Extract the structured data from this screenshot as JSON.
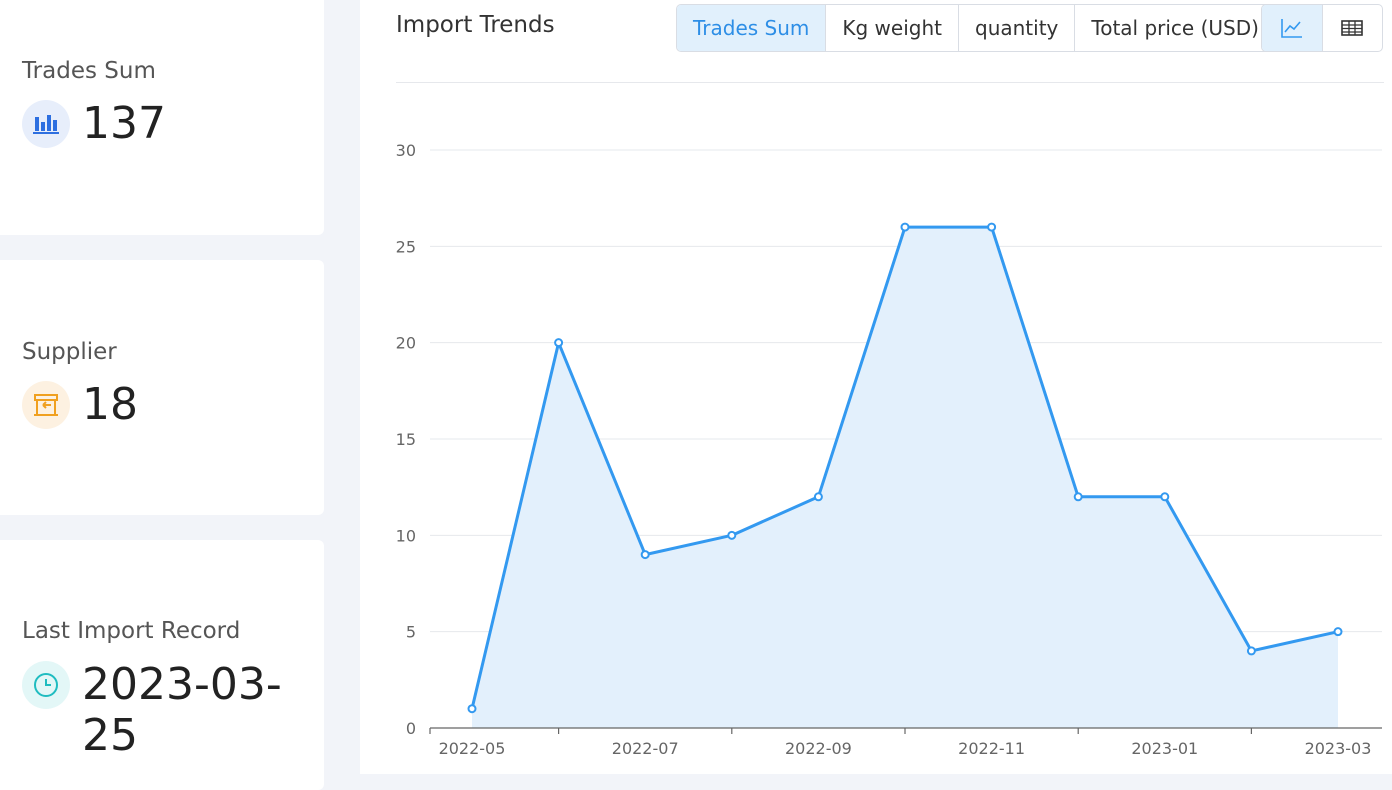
{
  "stats": {
    "trades": {
      "label": "Trades Sum",
      "value": "137",
      "icon": "bar-chart-icon",
      "color": "#2d6fe0"
    },
    "supplier": {
      "label": "Supplier",
      "value": "18",
      "icon": "storefront-icon",
      "color": "#f0a020"
    },
    "last_import": {
      "label": "Last Import Record",
      "value": "2023-03-25",
      "icon": "clock-icon",
      "color": "#1fbcc0"
    }
  },
  "chart": {
    "title": "Import Trends",
    "tabs": [
      "Trades Sum",
      "Kg weight",
      "quantity",
      "Total price (USD)"
    ],
    "active_tab": "Trades Sum",
    "view_buttons": {
      "line": "line-chart-icon",
      "table": "table-icon"
    },
    "active_view": "line",
    "accent_color": "#3399f0"
  },
  "chart_data": {
    "type": "area",
    "title": "",
    "xlabel": "",
    "ylabel": "",
    "x": [
      "2022-05",
      "2022-06",
      "2022-07",
      "2022-08",
      "2022-09",
      "2022-10",
      "2022-11",
      "2022-12",
      "2023-01",
      "2023-02",
      "2023-03"
    ],
    "values": [
      1,
      20,
      9,
      10,
      12,
      26,
      26,
      12,
      12,
      4,
      5
    ],
    "x_tick_labels": [
      "2022-05",
      "2022-07",
      "2022-09",
      "2022-11",
      "2023-01",
      "2023-03"
    ],
    "y_ticks": [
      0,
      5,
      10,
      15,
      20,
      25,
      30
    ],
    "ylim": [
      0,
      30
    ],
    "grid": true,
    "legend": "none"
  }
}
